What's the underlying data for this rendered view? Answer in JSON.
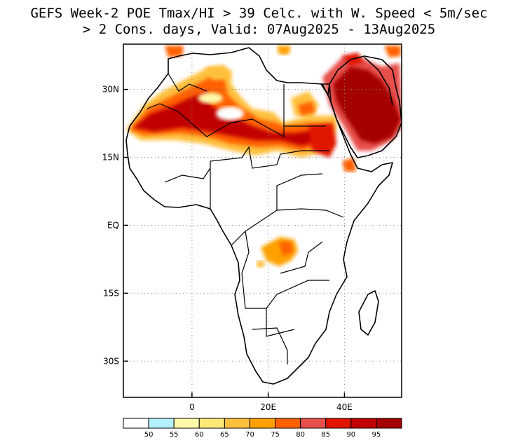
{
  "title_line1": "GEFS Week-2 POE Tmax/HI > 39 Celc. with W. Speed < 5m/sec",
  "title_line2": "> 2 Cons. days, Valid: 07Aug2025 - 13Aug2025",
  "map": {
    "region": "Africa and Arabian Peninsula",
    "lon_range": [
      -18,
      55
    ],
    "lat_range": [
      -38,
      40
    ],
    "x_ticks": [
      {
        "value": 0,
        "label": "0"
      },
      {
        "value": 20,
        "label": "20E"
      },
      {
        "value": 40,
        "label": "40E"
      }
    ],
    "y_ticks": [
      {
        "value": 30,
        "label": "30N"
      },
      {
        "value": 15,
        "label": "15N"
      },
      {
        "value": 0,
        "label": "EQ"
      },
      {
        "value": -15,
        "label": "15S"
      },
      {
        "value": -30,
        "label": "30S"
      }
    ],
    "gridlines": "dotted"
  },
  "colorbar": {
    "colors": [
      "#ffffff",
      "#b4f0fa",
      "#fffaaa",
      "#ffe878",
      "#ffc03c",
      "#ffa000",
      "#ff6000",
      "#e6504b",
      "#e11400",
      "#c00000",
      "#a50000"
    ],
    "labels": [
      "50",
      "55",
      "60",
      "65",
      "70",
      "75",
      "80",
      "85",
      "90",
      "95"
    ]
  },
  "colors": {
    "coast": "#000000",
    "grid": "#888888"
  }
}
